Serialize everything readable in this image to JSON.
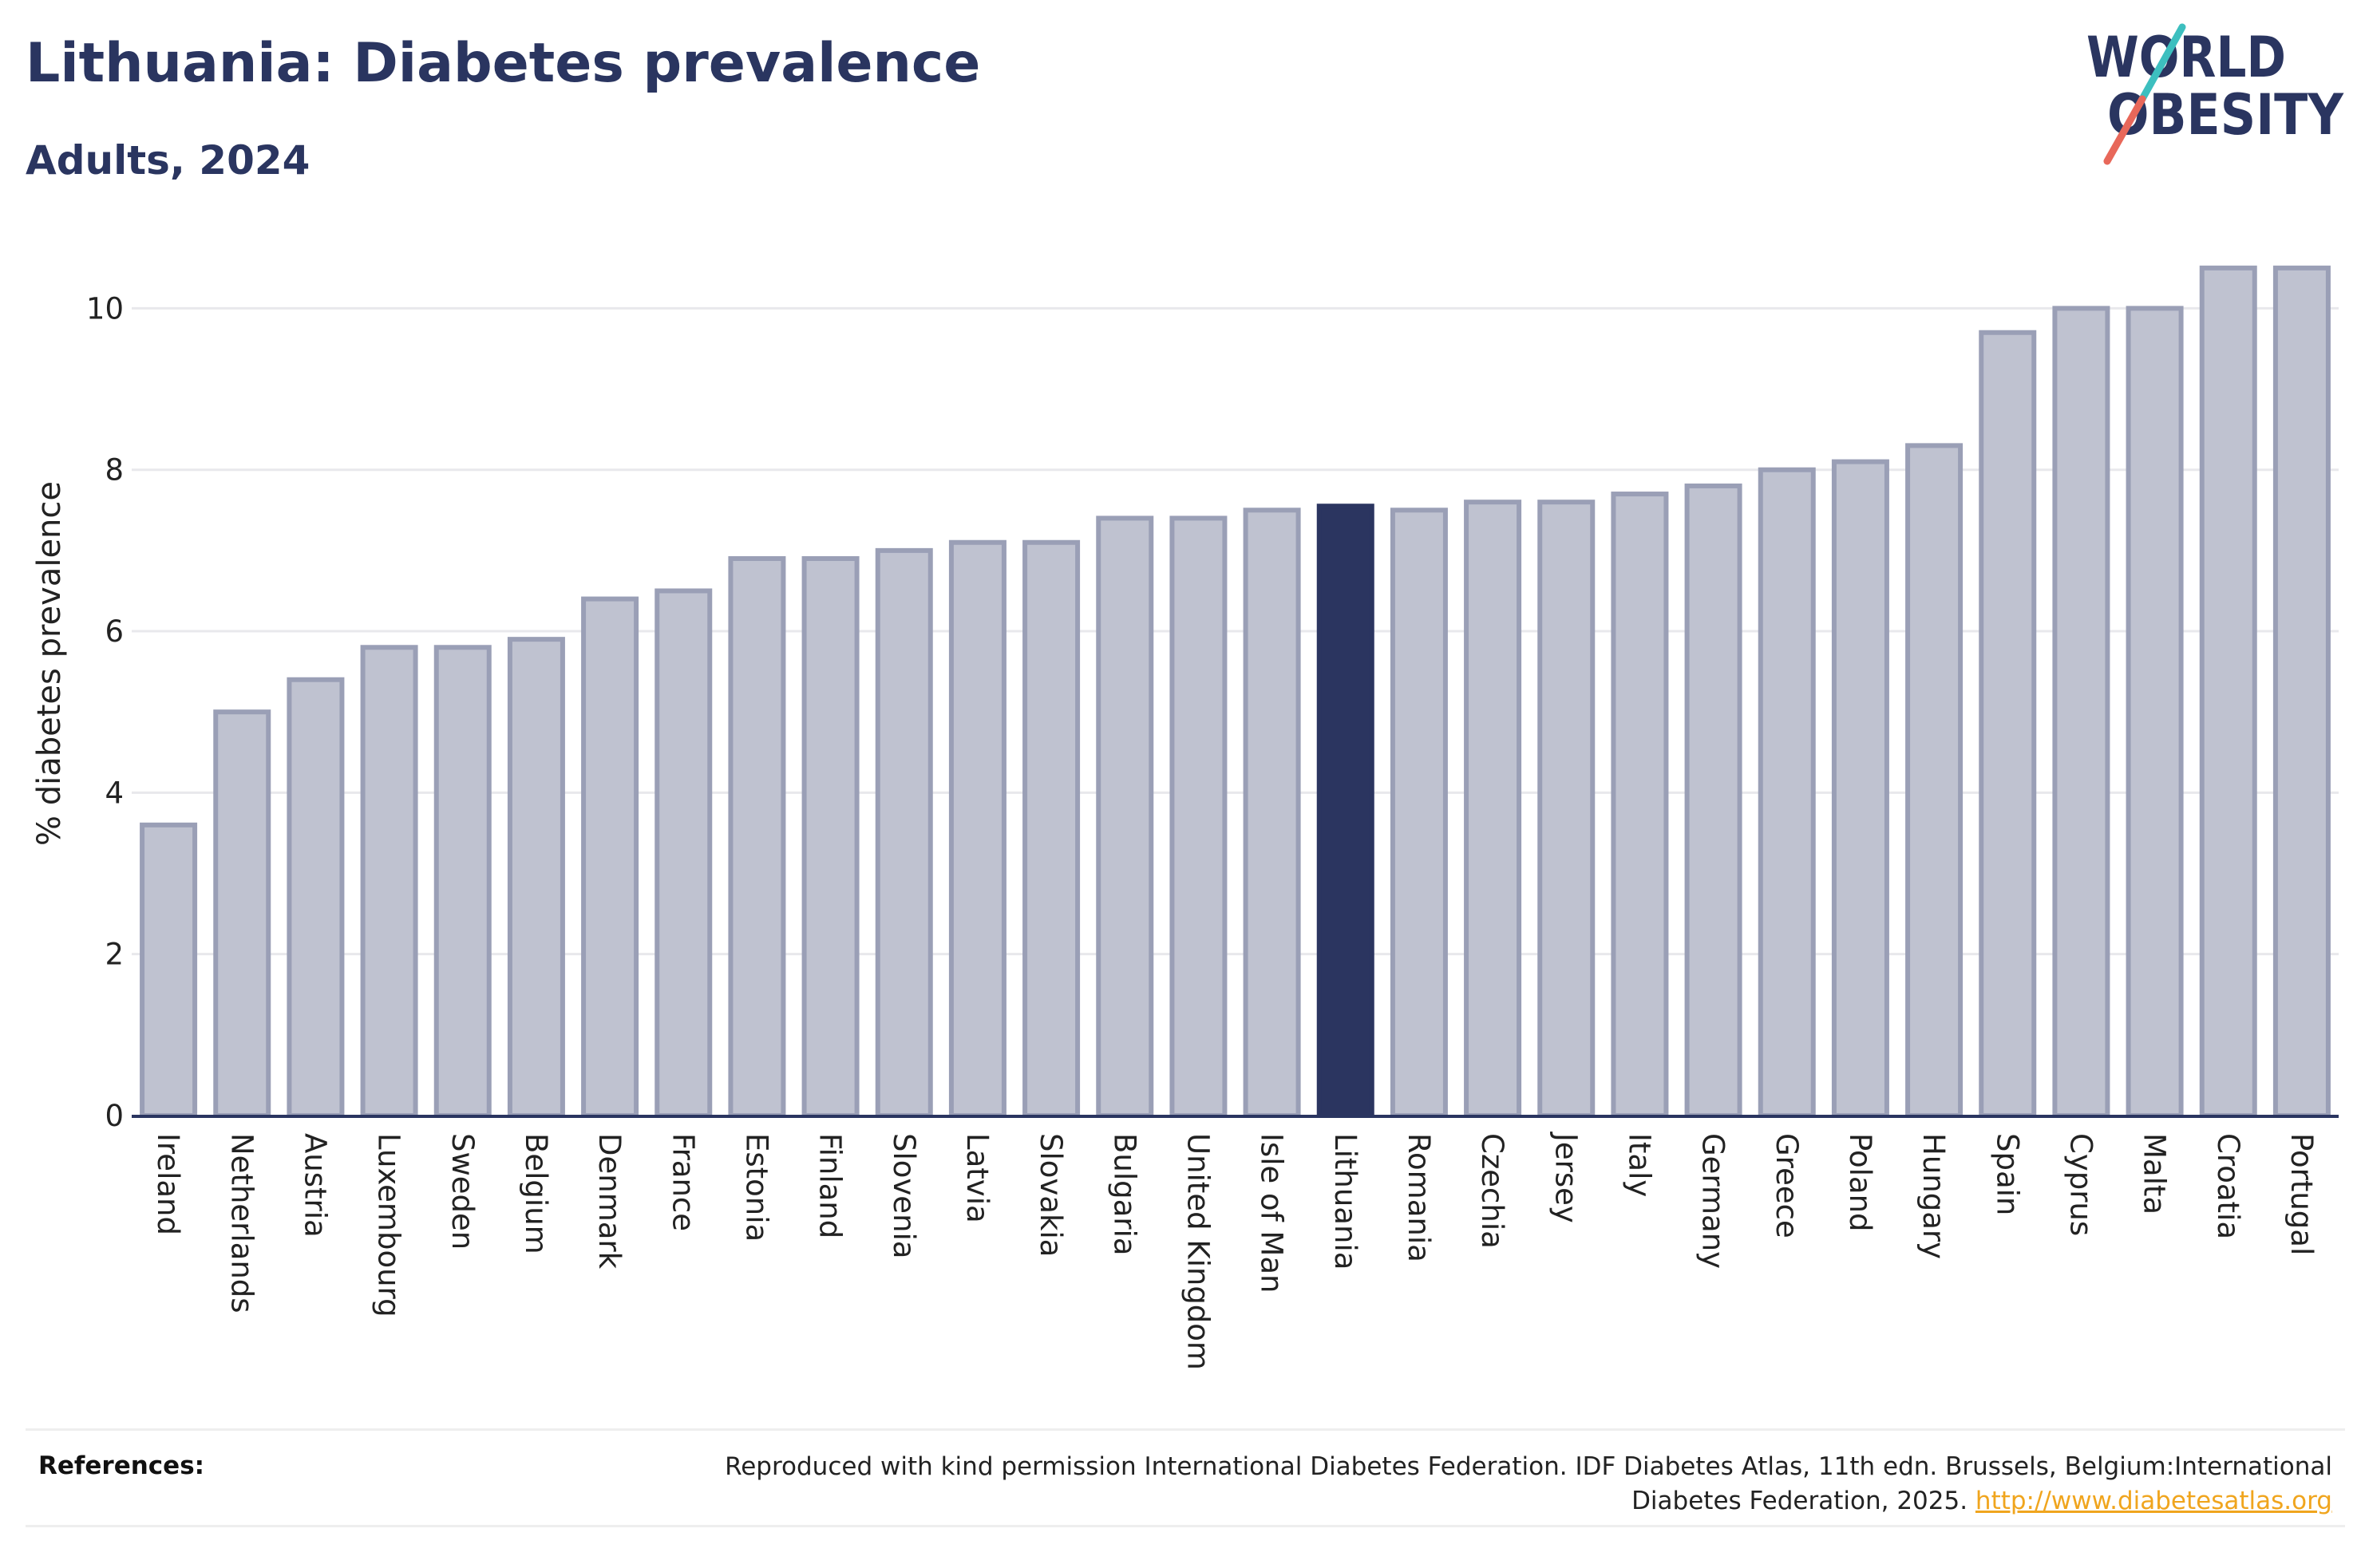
{
  "header": {
    "title": "Lithuania: Diabetes prevalence",
    "subtitle": "Adults, 2024"
  },
  "logo": {
    "line1": "WORLD",
    "line2": "OBESITY",
    "text_color": "#2a3560",
    "slash_colors": [
      "#e8685a",
      "#3dbfbf"
    ]
  },
  "colors": {
    "bar": "#bfc2d0",
    "bar_border": "#9a9fb6",
    "highlight": "#2b3560",
    "axis": "#2a3560",
    "grid": "#e8e8ec"
  },
  "chart_data": {
    "type": "bar",
    "ylabel": "% diabetes prevalence",
    "xlabel": "",
    "ylim": [
      0,
      11.2
    ],
    "yticks": [
      0,
      2,
      4,
      6,
      8,
      10
    ],
    "grid": true,
    "highlight_category": "Lithuania",
    "categories": [
      "Ireland",
      "Netherlands",
      "Austria",
      "Luxembourg",
      "Sweden",
      "Belgium",
      "Denmark",
      "France",
      "Estonia",
      "Finland",
      "Slovenia",
      "Latvia",
      "Slovakia",
      "Bulgaria",
      "United Kingdom",
      "Isle of Man",
      "Lithuania",
      "Romania",
      "Czechia",
      "Jersey",
      "Italy",
      "Germany",
      "Greece",
      "Poland",
      "Hungary",
      "Spain",
      "Cyprus",
      "Malta",
      "Croatia",
      "Portugal"
    ],
    "values": [
      3.6,
      5.0,
      5.4,
      5.8,
      5.8,
      5.9,
      6.4,
      6.5,
      6.9,
      6.9,
      7.0,
      7.1,
      7.1,
      7.4,
      7.4,
      7.5,
      7.55,
      7.5,
      7.6,
      7.6,
      7.7,
      7.8,
      8.0,
      8.1,
      8.3,
      9.7,
      10.0,
      10.0,
      10.5,
      10.5
    ]
  },
  "references": {
    "label": "References:",
    "text": "Reproduced with kind permission International Diabetes Federation. IDF Diabetes Atlas, 11th edn. Brussels, Belgium:International Diabetes Federation, 2025.",
    "link": "http://www.diabetesatlas.org"
  }
}
